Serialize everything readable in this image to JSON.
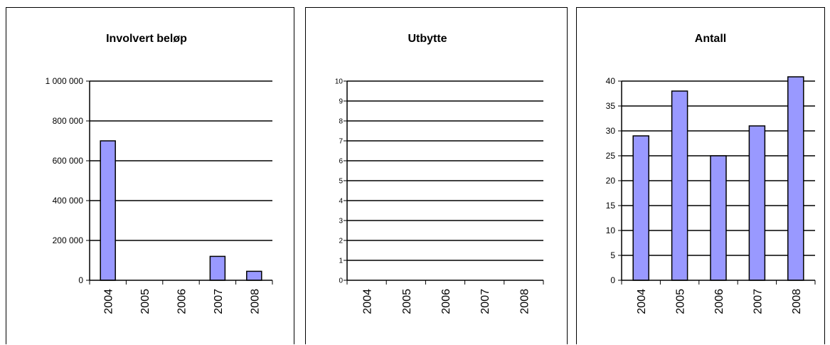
{
  "chart_data": [
    {
      "type": "bar",
      "title": "Involvert beløp",
      "categories": [
        "2004",
        "2005",
        "2006",
        "2007",
        "2008"
      ],
      "values": [
        700000,
        0,
        0,
        120000,
        45000
      ],
      "ylim": [
        0,
        1000000
      ],
      "yticks": [
        0,
        200000,
        400000,
        600000,
        800000,
        1000000
      ],
      "ytick_labels": [
        "0",
        "200 000",
        "400 000",
        "600 000",
        "800 000",
        "1 000 000"
      ],
      "grid": true,
      "bar_color": "#9999ff"
    },
    {
      "type": "bar",
      "title": "Utbytte",
      "categories": [
        "2004",
        "2005",
        "2006",
        "2007",
        "2008"
      ],
      "values": [
        0,
        0,
        0,
        0,
        0
      ],
      "ylim": [
        0,
        10
      ],
      "yticks": [
        0,
        1,
        2,
        3,
        4,
        5,
        6,
        7,
        8,
        9,
        10
      ],
      "ytick_labels": [
        "0",
        "1",
        "2",
        "3",
        "4",
        "5",
        "6",
        "7",
        "8",
        "9",
        "10"
      ],
      "grid": true,
      "bar_color": "#9999ff"
    },
    {
      "type": "bar",
      "title": "Antall",
      "categories": [
        "2004",
        "2005",
        "2006",
        "2007",
        "2008"
      ],
      "values": [
        29,
        38,
        25,
        31,
        41
      ],
      "ylim": [
        0,
        40
      ],
      "yticks": [
        0,
        5,
        10,
        15,
        20,
        25,
        30,
        35,
        40
      ],
      "ytick_labels": [
        "0",
        "5",
        "10",
        "15",
        "20",
        "25",
        "30",
        "35",
        "40"
      ],
      "grid": true,
      "bar_color": "#9999ff"
    }
  ]
}
